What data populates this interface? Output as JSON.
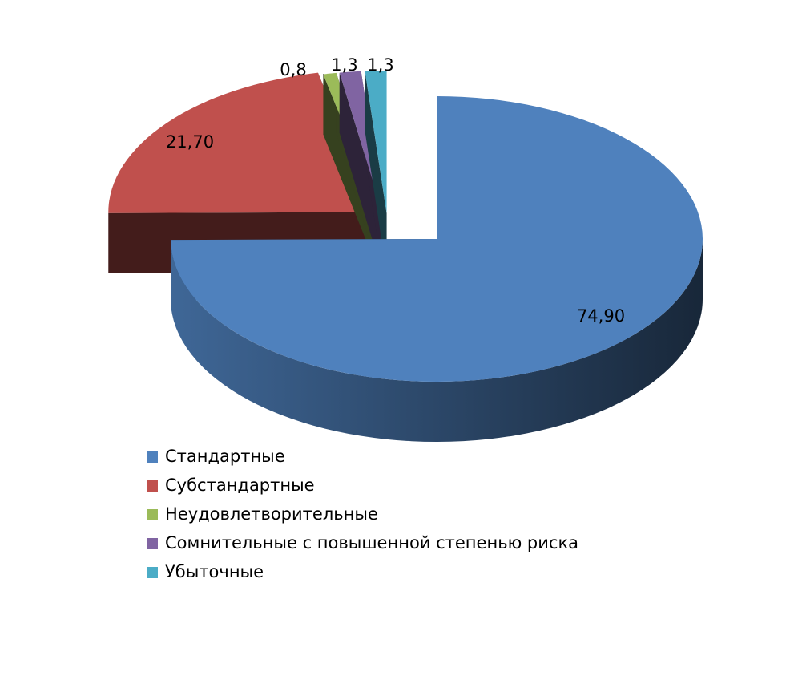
{
  "chart_data": {
    "type": "pie",
    "three_d": true,
    "exploded": true,
    "categories": [
      "Стандартные",
      "Субстандартные",
      "Неудовлетворительные",
      "Сомнительные с повышенной степенью риска",
      "Убыточные"
    ],
    "values": [
      74.9,
      21.7,
      0.8,
      1.3,
      1.3
    ],
    "value_labels": [
      "74,90",
      "21,70",
      "0,8",
      "1,3",
      "1,3"
    ],
    "colors": [
      "#4f81bd",
      "#c0504d",
      "#9bbb59",
      "#8064a2",
      "#4bacc6"
    ],
    "legend": "bottom"
  }
}
